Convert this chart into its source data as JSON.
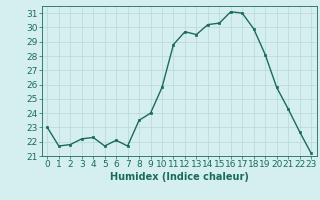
{
  "x": [
    0,
    1,
    2,
    3,
    4,
    5,
    6,
    7,
    8,
    9,
    10,
    11,
    12,
    13,
    14,
    15,
    16,
    17,
    18,
    19,
    20,
    21,
    22,
    23
  ],
  "y": [
    23.0,
    21.7,
    21.8,
    22.2,
    22.3,
    21.7,
    22.1,
    21.7,
    23.5,
    24.0,
    25.8,
    28.8,
    29.7,
    29.5,
    30.2,
    30.3,
    31.1,
    31.0,
    29.9,
    28.1,
    25.8,
    24.3,
    22.7,
    21.2
  ],
  "line_color": "#1a6b5a",
  "marker": "s",
  "marker_size": 2,
  "bg_color": "#d5efef",
  "grid_color": "#b8d8d8",
  "xlabel": "Humidex (Indice chaleur)",
  "xlabel_fontsize": 7,
  "ylabel_ticks": [
    21,
    22,
    23,
    24,
    25,
    26,
    27,
    28,
    29,
    30,
    31
  ],
  "xlim": [
    -0.5,
    23.5
  ],
  "ylim": [
    21.0,
    31.5
  ],
  "tick_fontsize": 6.5,
  "line_width": 1.0
}
